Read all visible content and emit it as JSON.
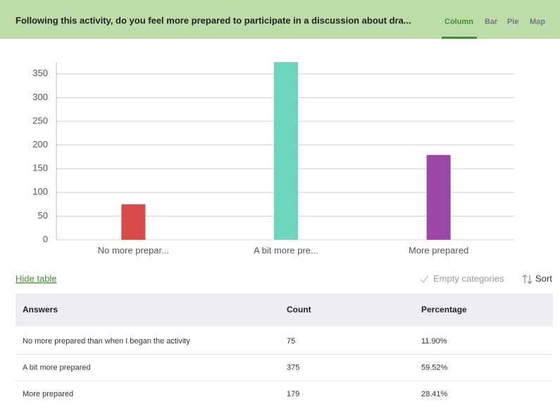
{
  "header": {
    "title": "Following this activity, do you feel more prepared to participate in a discussion about dra...",
    "tabs": [
      "Column",
      "Bar",
      "Pie",
      "Map"
    ],
    "active_tab": 0
  },
  "chart_data": {
    "type": "bar",
    "categories": [
      "No more prepar...",
      "A bit more pre...",
      "More prepared"
    ],
    "values": [
      75,
      375,
      179
    ],
    "colors": [
      "#d64a47",
      "#6dd6bd",
      "#9c47a8"
    ],
    "ylim": [
      0,
      375
    ],
    "yticks": [
      0,
      50,
      100,
      150,
      200,
      250,
      300,
      350
    ],
    "grid": true
  },
  "controls": {
    "hide_table": "Hide table",
    "empty_categories": "Empty categories",
    "sort": "Sort"
  },
  "table": {
    "columns": [
      "Answers",
      "Count",
      "Percentage"
    ],
    "rows": [
      [
        "No more prepared than when I began the activity",
        "75",
        "11.90%"
      ],
      [
        "A bit more prepared",
        "375",
        "59.52%"
      ],
      [
        "More prepared",
        "179",
        "28.41%"
      ]
    ]
  }
}
